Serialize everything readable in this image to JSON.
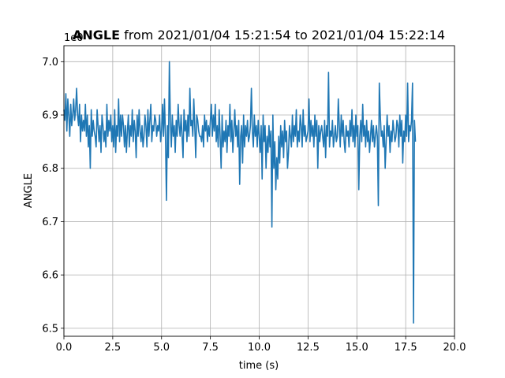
{
  "chart_data": {
    "type": "line",
    "title_bold": "ANGLE",
    "title_rest": " from 2021/01/04 15:21:54 to 2021/01/04 15:22:14",
    "xlabel": "time (s)",
    "ylabel": "ANGLE",
    "offset_label": "1e0",
    "xlim": [
      0,
      20
    ],
    "ylim": [
      6.485,
      7.03
    ],
    "xticks": [
      0,
      2.5,
      5,
      7.5,
      10,
      12.5,
      15,
      17.5,
      20
    ],
    "xtick_labels": [
      "0.0",
      "2.5",
      "5.0",
      "7.5",
      "10.0",
      "12.5",
      "15.0",
      "17.5",
      "20.0"
    ],
    "yticks": [
      6.5,
      6.6,
      6.7,
      6.8,
      6.9,
      7.0
    ],
    "ytick_labels": [
      "6.5",
      "6.6",
      "6.7",
      "6.8",
      "6.9",
      "7.0"
    ],
    "grid": true,
    "line_color": "#1f77b4",
    "series": [
      {
        "x_start": 0,
        "x_step": 0.05,
        "values": [
          6.91,
          6.89,
          6.94,
          6.87,
          6.93,
          6.9,
          6.86,
          6.92,
          6.88,
          6.9,
          6.93,
          6.89,
          6.91,
          6.95,
          6.9,
          6.88,
          6.92,
          6.85,
          6.9,
          6.87,
          6.89,
          6.87,
          6.92,
          6.86,
          6.9,
          6.84,
          6.88,
          6.8,
          6.91,
          6.86,
          6.89,
          6.87,
          6.86,
          6.84,
          6.91,
          6.88,
          6.85,
          6.88,
          6.83,
          6.9,
          6.88,
          6.85,
          6.87,
          6.84,
          6.92,
          6.86,
          6.89,
          6.87,
          6.9,
          6.85,
          6.88,
          6.84,
          6.91,
          6.83,
          6.88,
          6.86,
          6.93,
          6.85,
          6.9,
          6.86,
          6.9,
          6.88,
          6.84,
          6.88,
          6.83,
          6.87,
          6.9,
          6.84,
          6.88,
          6.86,
          6.91,
          6.85,
          6.89,
          6.87,
          6.82,
          6.9,
          6.86,
          6.91,
          6.87,
          6.85,
          6.88,
          6.84,
          6.86,
          6.9,
          6.88,
          6.84,
          6.91,
          6.86,
          6.89,
          6.92,
          6.85,
          6.88,
          6.87,
          6.9,
          6.89,
          6.86,
          6.88,
          6.87,
          6.9,
          6.85,
          6.87,
          6.92,
          6.86,
          6.93,
          6.86,
          6.74,
          6.88,
          6.82,
          7.0,
          6.89,
          6.84,
          6.9,
          6.86,
          6.88,
          6.83,
          6.89,
          6.86,
          6.92,
          6.88,
          6.86,
          6.9,
          6.86,
          6.82,
          6.91,
          6.87,
          6.89,
          6.85,
          6.9,
          6.86,
          6.95,
          6.88,
          6.89,
          6.86,
          6.93,
          6.88,
          6.82,
          6.9,
          6.89,
          6.87,
          6.86,
          6.86,
          6.85,
          6.88,
          6.84,
          6.9,
          6.87,
          6.89,
          6.85,
          6.88,
          6.86,
          6.89,
          6.92,
          6.86,
          6.9,
          6.87,
          6.92,
          6.85,
          6.88,
          6.84,
          6.91,
          6.86,
          6.8,
          6.9,
          6.84,
          6.87,
          6.85,
          6.89,
          6.83,
          6.88,
          6.86,
          6.92,
          6.85,
          6.89,
          6.83,
          6.87,
          6.91,
          6.86,
          6.88,
          6.84,
          6.89,
          6.77,
          6.86,
          6.88,
          6.81,
          6.9,
          6.84,
          6.88,
          6.86,
          6.89,
          6.85,
          6.86,
          6.88,
          6.95,
          6.87,
          6.84,
          6.9,
          6.86,
          6.88,
          6.84,
          6.89,
          6.86,
          6.83,
          6.88,
          6.78,
          6.9,
          6.85,
          6.88,
          6.8,
          6.86,
          6.83,
          6.88,
          6.84,
          6.87,
          6.69,
          6.9,
          6.8,
          6.85,
          6.76,
          6.82,
          6.78,
          6.86,
          6.81,
          6.88,
          6.84,
          6.87,
          6.82,
          6.89,
          6.85,
          6.87,
          6.8,
          6.83,
          6.88,
          6.86,
          6.84,
          6.9,
          6.85,
          6.88,
          6.86,
          6.91,
          6.84,
          6.87,
          6.85,
          6.9,
          6.88,
          6.84,
          6.91,
          6.86,
          6.88,
          6.85,
          6.86,
          6.87,
          6.93,
          6.85,
          6.89,
          6.86,
          6.88,
          6.84,
          6.9,
          6.86,
          6.89,
          6.8,
          6.88,
          6.85,
          6.87,
          6.88,
          6.86,
          6.84,
          6.89,
          6.82,
          6.88,
          6.86,
          6.98,
          6.84,
          6.87,
          6.86,
          6.89,
          6.84,
          6.86,
          6.88,
          6.85,
          6.86,
          6.93,
          6.88,
          6.84,
          6.9,
          6.86,
          6.89,
          6.85,
          6.83,
          6.88,
          6.86,
          6.87,
          6.84,
          6.89,
          6.86,
          6.91,
          6.85,
          6.88,
          6.84,
          6.9,
          6.86,
          6.88,
          6.76,
          6.86,
          6.89,
          6.85,
          6.92,
          6.86,
          6.88,
          6.84,
          6.89,
          6.85,
          6.87,
          6.83,
          6.86,
          6.89,
          6.85,
          6.88,
          6.84,
          6.86,
          6.88,
          6.86,
          6.73,
          6.96,
          6.9,
          6.86,
          6.87,
          6.84,
          6.88,
          6.8,
          6.85,
          6.9,
          6.86,
          6.88,
          6.83,
          6.87,
          6.85,
          6.89,
          6.87,
          6.85,
          6.86,
          6.89,
          6.88,
          6.84,
          6.9,
          6.86,
          6.89,
          6.81,
          6.87,
          6.85,
          6.9,
          6.86,
          6.96,
          6.85,
          6.88,
          6.87,
          6.89,
          6.96,
          6.51,
          6.89,
          6.85
        ]
      }
    ]
  }
}
